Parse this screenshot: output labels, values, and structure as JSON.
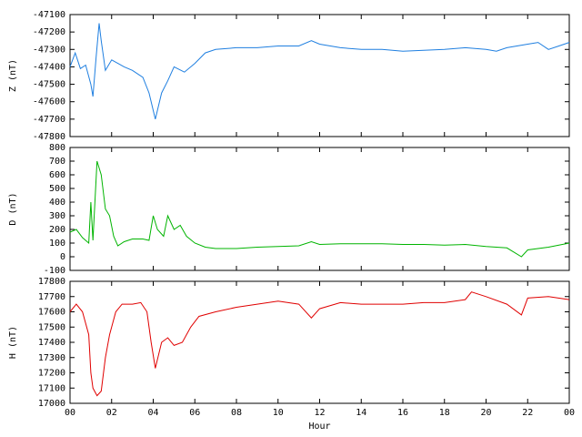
{
  "chart_data": [
    {
      "type": "line",
      "ylabel": "Z (nT)",
      "color": "#1f7fe0",
      "xlim": [
        0,
        24
      ],
      "ylim": [
        -47800,
        -47100
      ],
      "yticks": [
        -47800,
        -47700,
        -47600,
        -47500,
        -47400,
        -47300,
        -47200,
        -47100
      ],
      "x": [
        0,
        0.25,
        0.5,
        0.75,
        1,
        1.1,
        1.25,
        1.4,
        1.5,
        1.7,
        2,
        2.3,
        2.6,
        3,
        3.5,
        3.8,
        4.1,
        4.4,
        4.7,
        5,
        5.5,
        6,
        6.5,
        7,
        8,
        9,
        10,
        11,
        11.6,
        12,
        13,
        14,
        15,
        16,
        17,
        18,
        19,
        20,
        20.5,
        21,
        22,
        22.5,
        23,
        23.5,
        24
      ],
      "values": [
        -47400,
        -47320,
        -47410,
        -47390,
        -47500,
        -47570,
        -47350,
        -47150,
        -47250,
        -47420,
        -47360,
        -47380,
        -47400,
        -47420,
        -47460,
        -47550,
        -47700,
        -47550,
        -47480,
        -47400,
        -47430,
        -47380,
        -47320,
        -47300,
        -47290,
        -47290,
        -47280,
        -47280,
        -47250,
        -47270,
        -47290,
        -47300,
        -47300,
        -47310,
        -47305,
        -47300,
        -47290,
        -47300,
        -47310,
        -47290,
        -47270,
        -47260,
        -47300,
        -47280,
        -47260
      ]
    },
    {
      "type": "line",
      "ylabel": "D (nT)",
      "color": "#00b400",
      "xlim": [
        0,
        24
      ],
      "ylim": [
        -100,
        800
      ],
      "yticks": [
        -100,
        0,
        100,
        200,
        300,
        400,
        500,
        600,
        700,
        800
      ],
      "x": [
        0,
        0.3,
        0.6,
        0.9,
        1,
        1.1,
        1.3,
        1.5,
        1.7,
        1.9,
        2.1,
        2.3,
        2.6,
        3,
        3.5,
        3.8,
        4,
        4.2,
        4.5,
        4.7,
        5,
        5.3,
        5.6,
        6,
        6.5,
        7,
        8,
        9,
        10,
        11,
        11.6,
        12,
        13,
        14,
        15,
        16,
        17,
        18,
        19,
        20,
        21,
        21.7,
        22,
        23,
        24
      ],
      "values": [
        180,
        200,
        140,
        100,
        400,
        120,
        700,
        600,
        350,
        300,
        150,
        80,
        110,
        130,
        130,
        120,
        300,
        200,
        150,
        300,
        200,
        230,
        150,
        100,
        70,
        60,
        60,
        70,
        75,
        80,
        110,
        90,
        95,
        95,
        95,
        90,
        90,
        85,
        90,
        75,
        65,
        0,
        50,
        70,
        100
      ]
    },
    {
      "type": "line",
      "ylabel": "H (nT)",
      "xlabel": "Hour",
      "color": "#e00000",
      "xlim": [
        0,
        24
      ],
      "ylim": [
        17000,
        17800
      ],
      "yticks": [
        17000,
        17100,
        17200,
        17300,
        17400,
        17500,
        17600,
        17700,
        17800
      ],
      "xticks": [
        {
          "value": 0,
          "label": "00"
        },
        {
          "value": 2,
          "label": "02"
        },
        {
          "value": 4,
          "label": "04"
        },
        {
          "value": 6,
          "label": "06"
        },
        {
          "value": 8,
          "label": "08"
        },
        10,
        12,
        14,
        16,
        18,
        20,
        22,
        {
          "value": 24,
          "label": "00"
        }
      ],
      "x": [
        0,
        0.3,
        0.6,
        0.9,
        1,
        1.1,
        1.3,
        1.5,
        1.7,
        1.9,
        2.2,
        2.5,
        3,
        3.4,
        3.7,
        3.9,
        4.1,
        4.4,
        4.7,
        5,
        5.4,
        5.8,
        6.2,
        7,
        8,
        9,
        10,
        11,
        11.6,
        12,
        13,
        14,
        15,
        16,
        17,
        18,
        19,
        19.3,
        20,
        21,
        21.7,
        22,
        23,
        24
      ],
      "values": [
        17600,
        17650,
        17600,
        17450,
        17200,
        17100,
        17050,
        17080,
        17300,
        17450,
        17600,
        17650,
        17650,
        17660,
        17600,
        17400,
        17230,
        17400,
        17430,
        17380,
        17400,
        17500,
        17570,
        17600,
        17630,
        17650,
        17670,
        17650,
        17560,
        17620,
        17660,
        17650,
        17650,
        17650,
        17660,
        17660,
        17680,
        17730,
        17700,
        17650,
        17580,
        17690,
        17700,
        17680
      ]
    }
  ]
}
